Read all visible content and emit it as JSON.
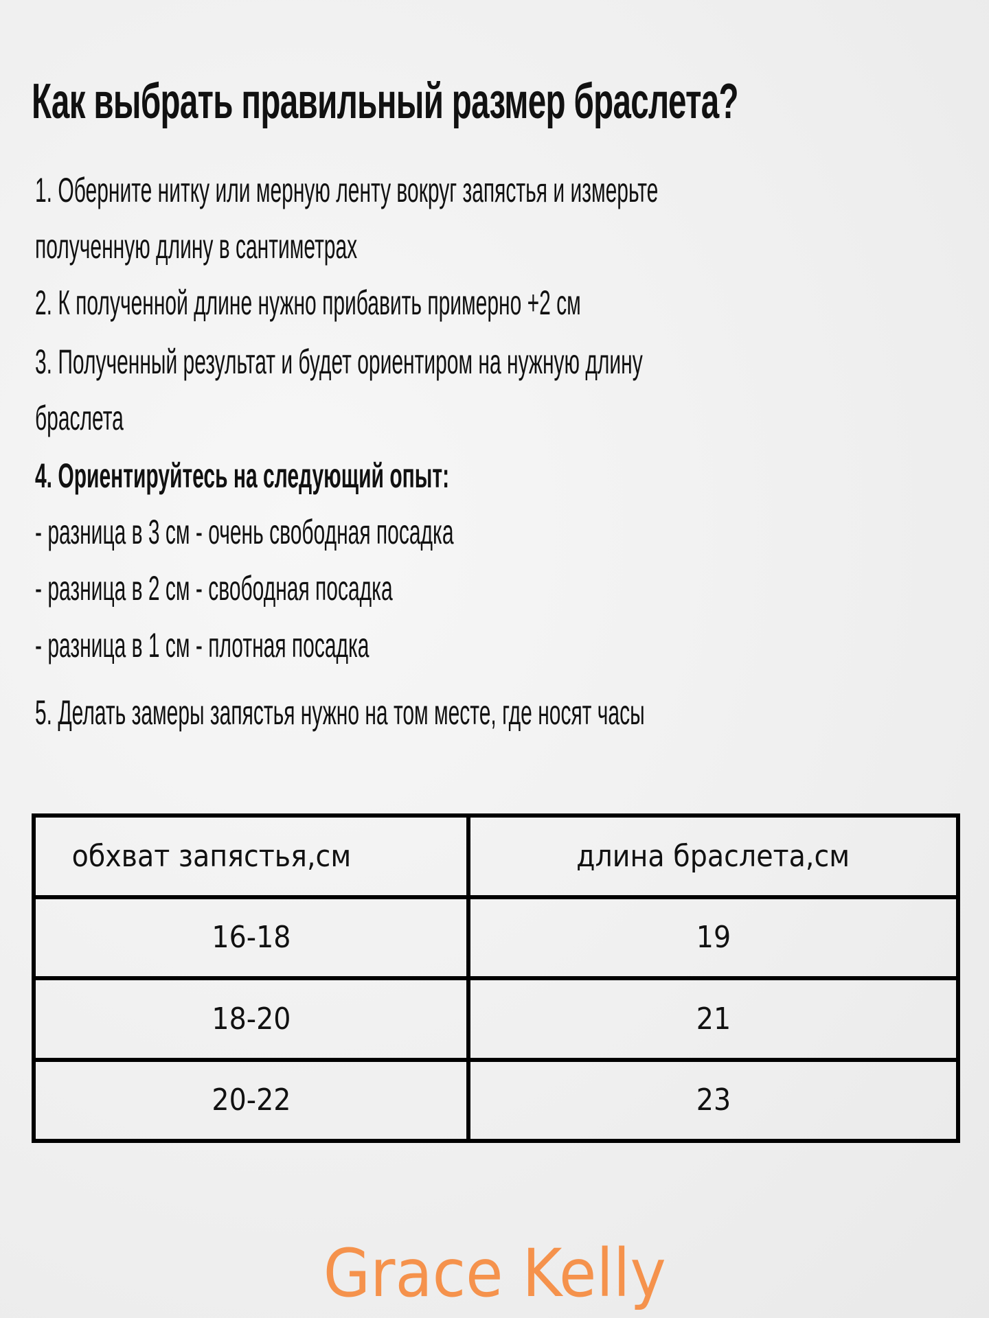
{
  "title": "Как выбрать правильный размер браслета?",
  "lines": [
    "1. Оберните нитку или мерную ленту вокруг запястья и измерьте",
    "полученную длину в сантиметрах",
    "2. К полученной длине нужно прибавить примерно +2 см",
    "3. Полученный результат и будет ориентиром на нужную длину",
    "браслета",
    "4. Ориентируйтесь на следующий опыт:",
    "- разница в 3 см - очень свободная посадка",
    "- разница в 2 см - свободная посадка",
    "- разница в 1 см - плотная посадка",
    "5. Делать замеры запястья нужно на том месте, где носят часы"
  ],
  "table": {
    "headers": [
      "обхват запястья,см",
      "длина браслета,см"
    ],
    "rows": [
      [
        "16-18",
        "19"
      ],
      [
        "18-20",
        "21"
      ],
      [
        "20-22",
        "23"
      ]
    ]
  },
  "brand": "Grace Kelly",
  "colors": {
    "brand": "#f5924c",
    "text": "#111111"
  }
}
